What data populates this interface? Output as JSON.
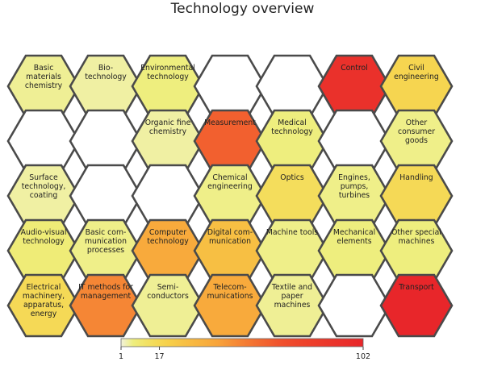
{
  "title": "Technology overview",
  "chart_data": {
    "type": "heatmap",
    "title": "Technology overview",
    "layout": "hexagonal grid, 5 rows",
    "scale": {
      "min": 1,
      "max": 102,
      "ticks": [
        1,
        17,
        102
      ],
      "tick_labels": [
        "1",
        "17",
        "102"
      ],
      "colors": [
        "#f2f2dc",
        "#eeee7a",
        "#f7d24a",
        "#f8a53a",
        "#f04e2c",
        "#e8262a"
      ]
    },
    "empty_color": "#ffffff",
    "rows": [
      [
        {
          "label": "Basic materials chemistry",
          "lines": [
            "Basic",
            "materials",
            "chemistry"
          ],
          "value": 4
        },
        {
          "label": "Bio-technology",
          "lines": [
            "Bio-",
            "technology"
          ],
          "value": 3
        },
        {
          "label": "Environmental technology",
          "lines": [
            "Environmental",
            "technology"
          ],
          "value": 6
        },
        {
          "label": "",
          "lines": [],
          "value": null
        },
        {
          "label": "",
          "lines": [],
          "value": null
        },
        {
          "label": "Control",
          "lines": [
            "Control"
          ],
          "value": 92
        },
        {
          "label": "Civil engineering",
          "lines": [
            "Civil",
            "engineering"
          ],
          "value": 18
        }
      ],
      [
        {
          "label": "",
          "lines": [],
          "value": null
        },
        {
          "label": "",
          "lines": [],
          "value": null
        },
        {
          "label": "Organic fine chemistry",
          "lines": [
            "Organic fine",
            "chemistry"
          ],
          "value": 3
        },
        {
          "label": "Measurement",
          "lines": [
            "Measurement"
          ],
          "value": 62
        },
        {
          "label": "Medical technology",
          "lines": [
            "Medical",
            "technology"
          ],
          "value": 6
        },
        {
          "label": "",
          "lines": [],
          "value": null
        },
        {
          "label": "Other consumer goods",
          "lines": [
            "Other",
            "consumer",
            "goods"
          ],
          "value": 5
        }
      ],
      [
        {
          "label": "Surface technology, coating",
          "lines": [
            "Surface",
            "technology,",
            "coating"
          ],
          "value": 3
        },
        {
          "label": "",
          "lines": [],
          "value": null
        },
        {
          "label": "",
          "lines": [],
          "value": null
        },
        {
          "label": "Chemical engineering",
          "lines": [
            "Chemical",
            "engineering"
          ],
          "value": 5
        },
        {
          "label": "Optics",
          "lines": [
            "Optics"
          ],
          "value": 14
        },
        {
          "label": "Engines, pumps, turbines",
          "lines": [
            "Engines,",
            "pumps,",
            "turbines"
          ],
          "value": 5
        },
        {
          "label": "Handling",
          "lines": [
            "Handling"
          ],
          "value": 16
        }
      ],
      [
        {
          "label": "Audio-visual technology",
          "lines": [
            "Audio-visual",
            "technology"
          ],
          "value": 7
        },
        {
          "label": "Basic communication processes",
          "lines": [
            "Basic com-",
            "munication",
            "processes"
          ],
          "value": 5
        },
        {
          "label": "Computer technology",
          "lines": [
            "Computer",
            "technology"
          ],
          "value": 38
        },
        {
          "label": "Digital communication",
          "lines": [
            "Digital com-",
            "munication"
          ],
          "value": 28
        },
        {
          "label": "Machine tools",
          "lines": [
            "Machine tools"
          ],
          "value": 5
        },
        {
          "label": "Mechanical elements",
          "lines": [
            "Mechanical",
            "elements"
          ],
          "value": 6
        },
        {
          "label": "Other special machines",
          "lines": [
            "Other special",
            "machines"
          ],
          "value": 6
        }
      ],
      [
        {
          "label": "Electrical machinery, apparatus, energy",
          "lines": [
            "Electrical",
            "machinery,",
            "apparatus,",
            "energy"
          ],
          "value": 16
        },
        {
          "label": "IT methods for management",
          "lines": [
            "IT methods for",
            "management"
          ],
          "value": 50
        },
        {
          "label": "Semi-conductors",
          "lines": [
            "Semi-",
            "conductors"
          ],
          "value": 4
        },
        {
          "label": "Telecommunications",
          "lines": [
            "Telecom-",
            "munications"
          ],
          "value": 38
        },
        {
          "label": "Textile and paper machines",
          "lines": [
            "Textile and",
            "paper",
            "machines"
          ],
          "value": 4
        },
        {
          "label": "",
          "lines": [],
          "value": null
        },
        {
          "label": "Transport",
          "lines": [
            "Transport"
          ],
          "value": 102
        }
      ]
    ]
  }
}
